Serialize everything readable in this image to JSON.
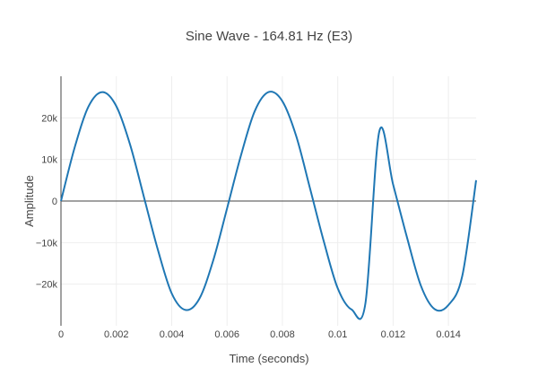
{
  "chart_data": {
    "type": "line",
    "title": "Sine Wave - 164.81 Hz (E3)",
    "xlabel": "Time (seconds)",
    "ylabel": "Amplitude",
    "xlim": [
      0,
      0.015
    ],
    "ylim": [
      -30000,
      30000
    ],
    "x_ticks": [
      {
        "value": 0,
        "label": "0"
      },
      {
        "value": 0.002,
        "label": "0.002"
      },
      {
        "value": 0.004,
        "label": "0.004"
      },
      {
        "value": 0.006,
        "label": "0.006"
      },
      {
        "value": 0.008,
        "label": "0.008"
      },
      {
        "value": 0.01,
        "label": "0.01"
      },
      {
        "value": 0.012,
        "label": "0.012"
      },
      {
        "value": 0.014,
        "label": "0.014"
      }
    ],
    "y_ticks": [
      {
        "value": 20000,
        "label": "20k"
      },
      {
        "value": 10000,
        "label": "10k"
      },
      {
        "value": 0,
        "label": "0"
      },
      {
        "value": -10000,
        "label": "−10k"
      },
      {
        "value": -20000,
        "label": "−20k"
      }
    ],
    "grid": true,
    "line_color": "#1f77b4",
    "series": [
      {
        "x": [
          0,
          0.0005,
          0.001,
          0.0015,
          0.002,
          0.0025,
          0.003,
          0.0035,
          0.004,
          0.0045,
          0.005,
          0.0055,
          0.006,
          0.0065,
          0.007,
          0.0075,
          0.008,
          0.0085,
          0.009,
          0.0095,
          0.01,
          0.0105,
          0.011,
          0.0115,
          0.012,
          0.0125,
          0.013,
          0.0135,
          0.014,
          0.0145,
          0.015
        ],
        "y": [
          0,
          13000,
          22800,
          26200,
          22800,
          13500,
          900,
          -11700,
          -22200,
          -26200,
          -23500,
          -14300,
          -1800,
          10900,
          21600,
          26200,
          24000,
          15600,
          3000,
          -9800,
          -21000,
          -26100,
          -24600,
          16700,
          4000,
          -8700,
          -20300,
          -26000,
          -25000,
          -18000,
          5000
        ]
      }
    ]
  }
}
